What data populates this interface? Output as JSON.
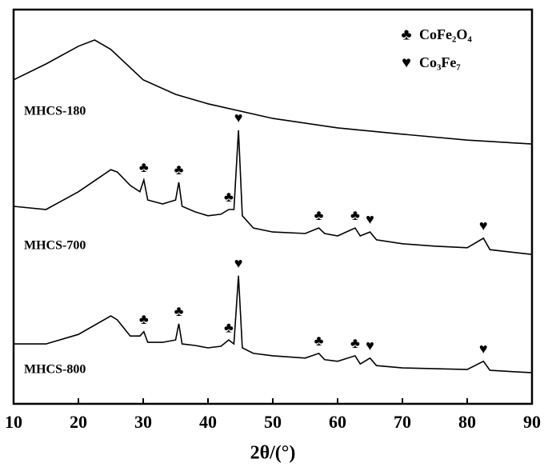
{
  "chart_data": {
    "type": "line",
    "xlabel": "2θ/(°)",
    "xlim": [
      10,
      90
    ],
    "xticks": [
      10,
      20,
      30,
      40,
      50,
      60,
      70,
      80,
      90
    ],
    "ylim": [
      0,
      100
    ],
    "legend": [
      {
        "symbol": "♣",
        "label": "CoFe₂O₄"
      },
      {
        "symbol": "♥",
        "label": "Co₃Fe₇"
      }
    ],
    "series": [
      {
        "name": "MHCS-180",
        "color": "#000000",
        "x": [
          10,
          15,
          20,
          22.5,
          25,
          30,
          35,
          40,
          50,
          60,
          70,
          80,
          90
        ],
        "values": [
          82.2,
          86.2,
          90.7,
          92.3,
          89.9,
          82.2,
          78.5,
          76.1,
          72.4,
          70.0,
          68.4,
          66.9,
          65.9
        ],
        "markers": []
      },
      {
        "name": "MHCS-700",
        "color": "#000000",
        "x": [
          10,
          15,
          20,
          25,
          26,
          28,
          29.5,
          30.1,
          30.7,
          33,
          35,
          35.5,
          36,
          38,
          40,
          42,
          43.2,
          44,
          44.7,
          45.3,
          47,
          50,
          55,
          57.1,
          58,
          60,
          62.7,
          63.5,
          65,
          66,
          70,
          75,
          80,
          82.5,
          83.5,
          90
        ],
        "values": [
          50.1,
          49.3,
          53.8,
          59.4,
          58.8,
          55.4,
          53.8,
          56.8,
          51.7,
          50.7,
          51.7,
          56.2,
          50.1,
          48.7,
          47.7,
          48.1,
          49.3,
          49.3,
          69.4,
          47.7,
          44.6,
          43.6,
          43.2,
          44.6,
          43.2,
          42.6,
          44.6,
          42.6,
          43.6,
          41.6,
          40.6,
          40.0,
          39.6,
          42.0,
          39.1,
          37.9
        ],
        "markers": [
          {
            "x": 30.1,
            "symbol": "♣"
          },
          {
            "x": 35.5,
            "symbol": "♣"
          },
          {
            "x": 43.2,
            "symbol": "♣"
          },
          {
            "x": 44.7,
            "symbol": "♥"
          },
          {
            "x": 57.1,
            "symbol": "♣"
          },
          {
            "x": 62.7,
            "symbol": "♣"
          },
          {
            "x": 65,
            "symbol": "♥"
          },
          {
            "x": 82.5,
            "symbol": "♥"
          }
        ]
      },
      {
        "name": "MHCS-800",
        "color": "#000000",
        "x": [
          10,
          15,
          20,
          25,
          26,
          28,
          29.5,
          30.1,
          30.7,
          33,
          35,
          35.5,
          36,
          38,
          40,
          42,
          43.2,
          44,
          44.7,
          45.3,
          47,
          50,
          55,
          57.1,
          58,
          60,
          62.7,
          63.5,
          65,
          66,
          70,
          75,
          80,
          82.5,
          83.5,
          90
        ],
        "values": [
          15.2,
          15.2,
          17.6,
          22.3,
          21.3,
          17.2,
          17.2,
          18.3,
          15.6,
          15.6,
          16.2,
          20.3,
          15.2,
          14.8,
          14.2,
          14.6,
          16.2,
          15.2,
          32.5,
          14.2,
          12.8,
          12.2,
          11.6,
          12.8,
          11.2,
          10.8,
          12.2,
          10.1,
          11.6,
          9.7,
          9.1,
          8.9,
          8.7,
          10.8,
          8.5,
          7.9
        ],
        "markers": [
          {
            "x": 30.1,
            "symbol": "♣"
          },
          {
            "x": 35.5,
            "symbol": "♣"
          },
          {
            "x": 43.2,
            "symbol": "♣"
          },
          {
            "x": 44.7,
            "symbol": "♥"
          },
          {
            "x": 57.1,
            "symbol": "♣"
          },
          {
            "x": 62.7,
            "symbol": "♣"
          },
          {
            "x": 65,
            "symbol": "♥"
          },
          {
            "x": 82.5,
            "symbol": "♥"
          }
        ]
      }
    ]
  }
}
